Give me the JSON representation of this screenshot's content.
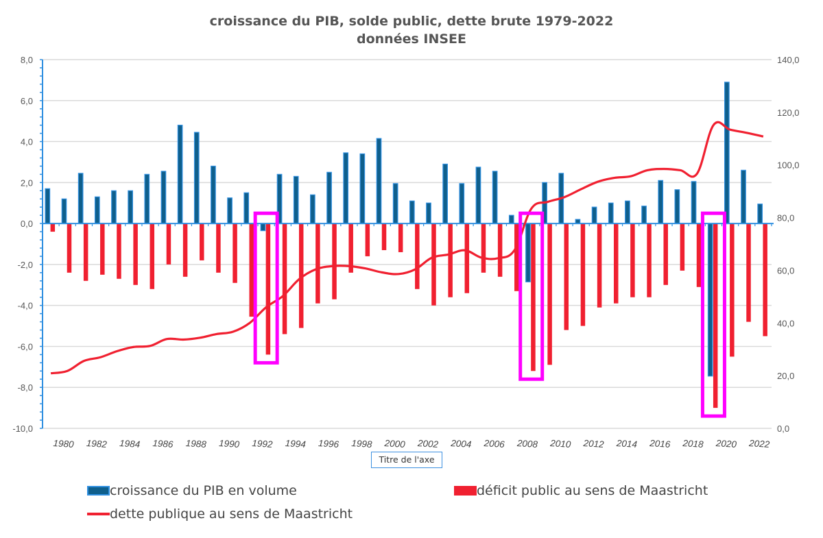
{
  "chart_data": {
    "type": "bar+line",
    "title": "croissance du PIB, solde public, dette brute 1979-2022",
    "subtitle": "données INSEE",
    "xlabel": "Titre de l'axe",
    "categories": [
      1979,
      1980,
      1981,
      1982,
      1983,
      1984,
      1985,
      1986,
      1987,
      1988,
      1989,
      1990,
      1991,
      1992,
      1993,
      1994,
      1995,
      1996,
      1997,
      1998,
      1999,
      2000,
      2001,
      2002,
      2003,
      2004,
      2005,
      2006,
      2007,
      2008,
      2009,
      2010,
      2011,
      2012,
      2013,
      2014,
      2015,
      2016,
      2017,
      2018,
      2019,
      2020,
      2021,
      2022
    ],
    "x_tick_labels": [
      "1980",
      "1982",
      "1984",
      "1986",
      "1988",
      "1990",
      "1992",
      "1994",
      "1996",
      "1998",
      "2000",
      "2002",
      "2004",
      "2006",
      "2008",
      "2010",
      "2012",
      "2014",
      "2016",
      "2018",
      "2020",
      "2022"
    ],
    "left_axis": {
      "ylim": [
        -10,
        8
      ],
      "ticks": [
        "8,0",
        "6,0",
        "4,0",
        "2,0",
        "0,0",
        "-2,0",
        "-4,0",
        "-6,0",
        "-8,0",
        "-10,0"
      ]
    },
    "right_axis": {
      "ylim": [
        0,
        140
      ],
      "ticks": [
        "140,0",
        "120,0",
        "100,0",
        "80,0",
        "60,0",
        "40,0",
        "20,0",
        "0,0"
      ]
    },
    "grid": true,
    "legend_position": "bottom",
    "series": [
      {
        "name": "croissance du PIB en volume",
        "type": "bar",
        "axis": "left",
        "color": "#0f5f8c",
        "edge_color": "#2f8fe0",
        "values": [
          1.7,
          1.2,
          2.45,
          1.3,
          1.6,
          1.6,
          2.4,
          2.55,
          4.8,
          4.45,
          2.8,
          1.25,
          1.5,
          -0.35,
          2.4,
          2.3,
          1.4,
          2.5,
          3.45,
          3.4,
          4.15,
          1.95,
          1.1,
          1.0,
          2.9,
          1.95,
          2.75,
          2.55,
          0.4,
          -2.85,
          2.0,
          2.45,
          0.2,
          0.8,
          1.0,
          1.1,
          0.85,
          2.1,
          1.65,
          2.05,
          -7.45,
          6.9,
          2.6,
          0.95
        ]
      },
      {
        "name": "déficit public au sens de Maastricht",
        "type": "bar",
        "axis": "left",
        "color": "#f02030",
        "values": [
          -0.4,
          -2.4,
          -2.8,
          -2.5,
          -2.7,
          -3.0,
          -3.2,
          -2.0,
          -2.6,
          -1.8,
          -2.4,
          -2.9,
          -4.55,
          -6.4,
          -5.4,
          -5.1,
          -3.9,
          -3.7,
          -2.4,
          -1.6,
          -1.3,
          -1.4,
          -3.2,
          -4.0,
          -3.6,
          -3.4,
          -2.4,
          -2.6,
          -3.3,
          -7.2,
          -6.9,
          -5.2,
          -5.0,
          -4.1,
          -3.9,
          -3.6,
          -3.6,
          -3.0,
          -2.3,
          -3.1,
          -9.0,
          -6.5,
          -4.8,
          -5.5
        ]
      },
      {
        "name": "dette publique au sens de Maastricht",
        "type": "line",
        "axis": "right",
        "color": "#f02030",
        "values": [
          20.9,
          21.8,
          25.6,
          27.0,
          29.3,
          30.9,
          31.3,
          33.9,
          33.7,
          34.4,
          35.8,
          36.7,
          40.0,
          46.0,
          50.2,
          56.7,
          60.4,
          61.6,
          61.6,
          60.7,
          59.2,
          58.6,
          60.4,
          64.8,
          66.0,
          67.6,
          64.8,
          64.6,
          67.8,
          83.4,
          86.0,
          87.8,
          90.8,
          93.6,
          95.1,
          95.7,
          98.0,
          98.5,
          98.0,
          96.7,
          115.2,
          113.4,
          112.2,
          110.8
        ]
      }
    ],
    "highlighted_years": [
      1992,
      2008,
      2019
    ],
    "highlight_color": "#ff00ff"
  }
}
